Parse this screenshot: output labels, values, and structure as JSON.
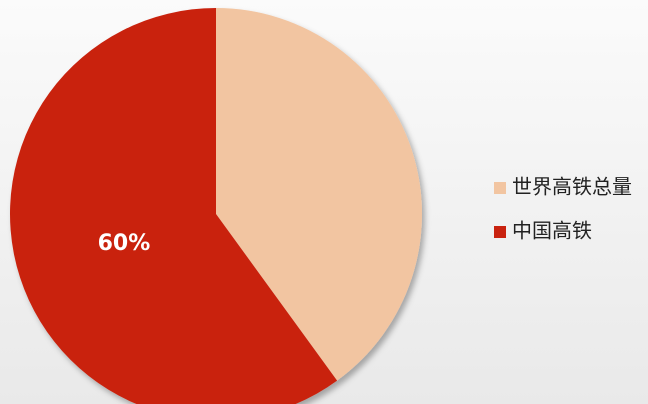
{
  "chart_data": {
    "type": "pie",
    "categories": [
      "世界高铁总量",
      "中国高铁"
    ],
    "values": [
      40,
      60
    ],
    "value_labels": [
      null,
      "60%"
    ],
    "colors": [
      "#f2c5a1",
      "#c9220f"
    ]
  }
}
